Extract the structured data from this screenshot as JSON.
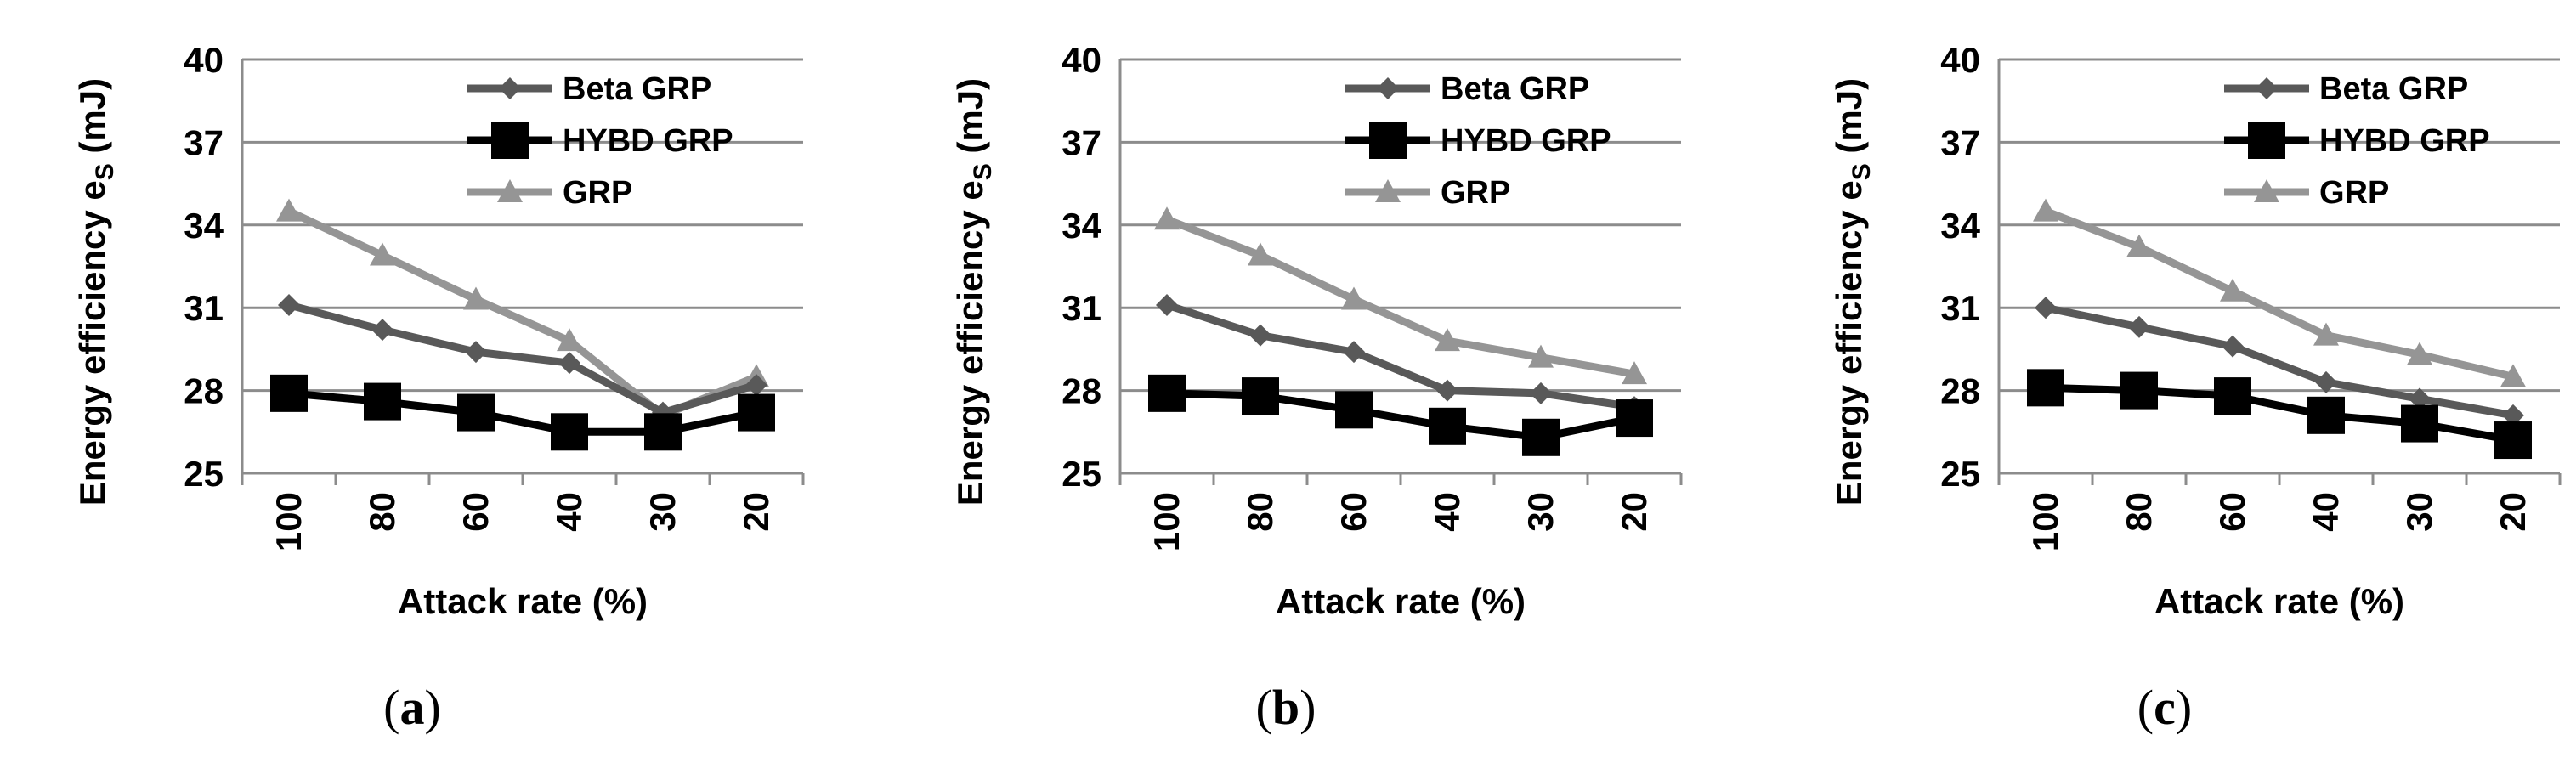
{
  "chart_data": [
    {
      "type": "line",
      "panel_label": {
        "open": "(",
        "letter": "a",
        "close": ")"
      },
      "categories": [
        "100",
        "80",
        "60",
        "40",
        "30",
        "20"
      ],
      "xlabel": "Attack rate (%)",
      "ylabel": {
        "main": "Energy efficiency e",
        "sub": "S",
        "unit": " (mJ)"
      },
      "ylim": [
        25,
        40
      ],
      "yticks": [
        "25",
        "28",
        "31",
        "34",
        "37",
        "40"
      ],
      "grid": true,
      "legend": "top-right",
      "series": [
        {
          "name": "Beta GRP",
          "color": "#595959",
          "marker": "diamond",
          "values": [
            31.1,
            30.2,
            29.4,
            29.0,
            27.2,
            28.2
          ]
        },
        {
          "name": "HYBD GRP",
          "color": "#000000",
          "marker": "square",
          "values": [
            27.9,
            27.6,
            27.2,
            26.5,
            26.5,
            27.2
          ]
        },
        {
          "name": "GRP",
          "color": "#959595",
          "marker": "triangle",
          "values": [
            34.5,
            32.9,
            31.3,
            29.8,
            27.1,
            28.5
          ]
        }
      ]
    },
    {
      "type": "line",
      "panel_label": {
        "open": "(",
        "letter": "b",
        "close": ")"
      },
      "categories": [
        "100",
        "80",
        "60",
        "40",
        "30",
        "20"
      ],
      "xlabel": "Attack rate (%)",
      "ylabel": {
        "main": "Energy efficiency e",
        "sub": "S",
        "unit": " (mJ)"
      },
      "ylim": [
        25,
        40
      ],
      "yticks": [
        "25",
        "28",
        "31",
        "34",
        "37",
        "40"
      ],
      "grid": true,
      "legend": "top-right",
      "series": [
        {
          "name": "Beta GRP",
          "color": "#595959",
          "marker": "diamond",
          "values": [
            31.1,
            30.0,
            29.4,
            28.0,
            27.9,
            27.4
          ]
        },
        {
          "name": "HYBD GRP",
          "color": "#000000",
          "marker": "square",
          "values": [
            27.9,
            27.8,
            27.3,
            26.7,
            26.3,
            27.0
          ]
        },
        {
          "name": "GRP",
          "color": "#959595",
          "marker": "triangle",
          "values": [
            34.2,
            32.9,
            31.3,
            29.8,
            29.2,
            28.6
          ]
        }
      ]
    },
    {
      "type": "line",
      "panel_label": {
        "open": "(",
        "letter": "c",
        "close": ")"
      },
      "categories": [
        "100",
        "80",
        "60",
        "40",
        "30",
        "20"
      ],
      "xlabel": "Attack rate (%)",
      "ylabel": {
        "main": "Energy efficiency e",
        "sub": "S",
        "unit": " (mJ)"
      },
      "ylim": [
        25,
        40
      ],
      "yticks": [
        "25",
        "28",
        "31",
        "34",
        "37",
        "40"
      ],
      "grid": true,
      "legend": "top-right",
      "series": [
        {
          "name": "Beta GRP",
          "color": "#595959",
          "marker": "diamond",
          "values": [
            31.0,
            30.3,
            29.6,
            28.3,
            27.7,
            27.1
          ]
        },
        {
          "name": "HYBD GRP",
          "color": "#000000",
          "marker": "square",
          "values": [
            28.1,
            28.0,
            27.8,
            27.1,
            26.8,
            26.2
          ]
        },
        {
          "name": "GRP",
          "color": "#959595",
          "marker": "triangle",
          "values": [
            34.5,
            33.2,
            31.6,
            30.0,
            29.3,
            28.5
          ]
        }
      ]
    }
  ]
}
